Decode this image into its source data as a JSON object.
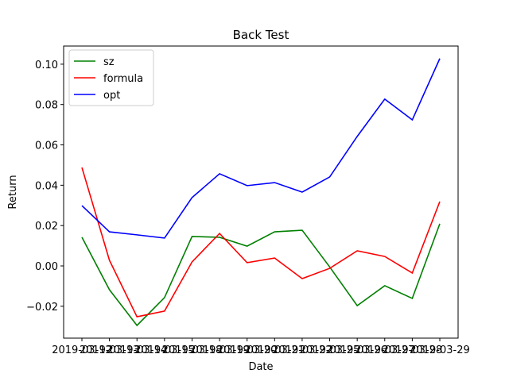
{
  "chart_data": {
    "type": "line",
    "title": "Back Test",
    "xlabel": "Date",
    "ylabel": "Return",
    "categories": [
      "2019-03-12",
      "2019-03-13",
      "2019-03-14",
      "2019-03-15",
      "2019-03-18",
      "2019-03-19",
      "2019-03-20",
      "2019-03-21",
      "2019-03-22",
      "2019-03-25",
      "2019-03-26",
      "2019-03-27",
      "2019-03-28",
      "2019-03-29"
    ],
    "series": [
      {
        "name": "sz",
        "color": "#008000",
        "values": [
          0.0142,
          -0.0118,
          -0.0295,
          -0.0157,
          0.0146,
          0.0142,
          0.0098,
          0.0169,
          0.0177,
          -0.0005,
          -0.0197,
          -0.0098,
          -0.0161,
          0.0209
        ]
      },
      {
        "name": "formula",
        "color": "#ff0000",
        "values": [
          0.0488,
          0.0028,
          -0.0252,
          -0.0224,
          0.002,
          0.0161,
          0.0016,
          0.0039,
          -0.0063,
          -0.0012,
          0.0075,
          0.0047,
          -0.0035,
          0.0319
        ]
      },
      {
        "name": "opt",
        "color": "#0000ff",
        "values": [
          0.0299,
          0.0169,
          0.0154,
          0.0138,
          0.0339,
          0.0457,
          0.0398,
          0.0413,
          0.0366,
          0.0441,
          0.0642,
          0.0827,
          0.0724,
          0.1028
        ]
      }
    ],
    "ylim": [
      -0.0358,
      0.109
    ],
    "yticks": [
      {
        "value": -0.02,
        "label": "−0.02"
      },
      {
        "value": 0,
        "label": "0.00"
      },
      {
        "value": 0.02,
        "label": "0.02"
      },
      {
        "value": 0.04,
        "label": "0.04"
      },
      {
        "value": 0.06,
        "label": "0.06"
      },
      {
        "value": 0.08,
        "label": "0.08"
      },
      {
        "value": 0.1,
        "label": "0.10"
      }
    ],
    "legend": "upper left"
  }
}
